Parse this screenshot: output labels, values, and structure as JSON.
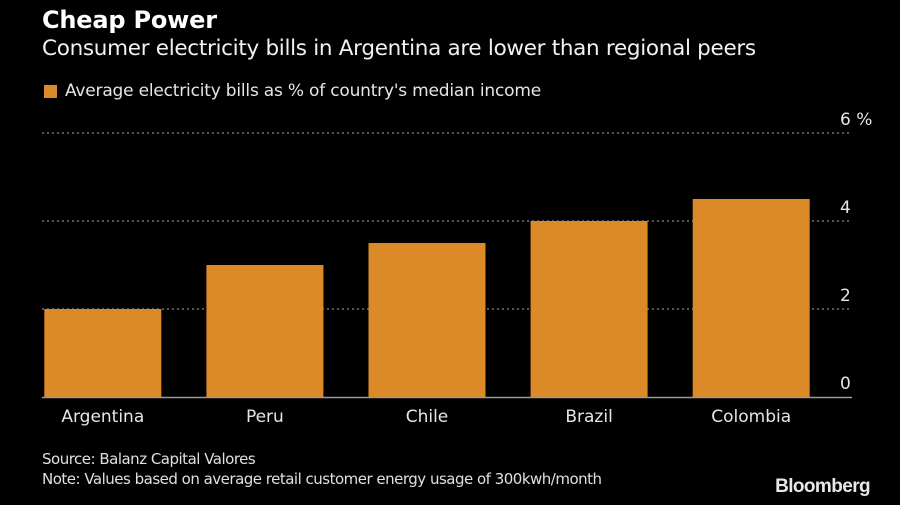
{
  "header": {
    "title": "Cheap Power",
    "subtitle": "Consumer electricity bills in Argentina are lower than regional peers"
  },
  "legend": {
    "label": "Average electricity bills as % of country's median income",
    "color": "#dc8a27"
  },
  "footer": {
    "source": "Source: Balanz Capital Valores",
    "note": "Note: Values based on average retail customer energy usage of 300kwh/month",
    "brand": "Bloomberg"
  },
  "chart_data": {
    "type": "bar",
    "title": "Cheap Power",
    "subtitle": "Consumer electricity bills in Argentina are lower than regional peers",
    "categories": [
      "Argentina",
      "Peru",
      "Chile",
      "Brazil",
      "Colombia"
    ],
    "series": [
      {
        "name": "Average electricity bills as % of country's median income",
        "color": "#dc8a27",
        "values": [
          2.0,
          3.0,
          3.5,
          4.0,
          4.5
        ]
      }
    ],
    "xlabel": "",
    "ylabel": "%",
    "ylim": [
      0,
      6
    ],
    "yticks": [
      0,
      2,
      4,
      6
    ],
    "ytick_labels": [
      "0",
      "2",
      "4",
      "6 %"
    ],
    "y_axis_position": "right",
    "grid": true,
    "legend_position": "top-left"
  }
}
